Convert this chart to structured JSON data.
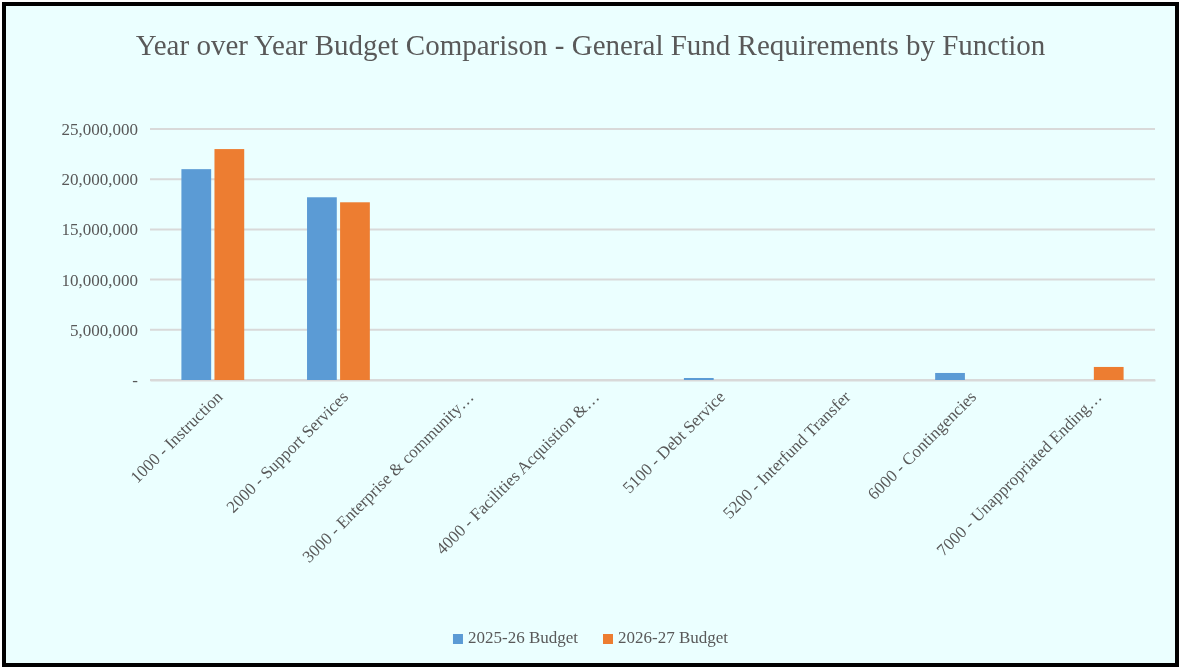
{
  "chart_data": {
    "type": "bar",
    "title": "Year over Year Budget Comparison  - General Fund Requirements  by Function",
    "categories": [
      "1000 - Instruction",
      "2000 - Support Services",
      "3000 - Enterprise & community…",
      "4000 - Facilities Acquistion &…",
      "5100 - Debt Service",
      "5200 - Interfund Transfer",
      "6000 - Contingencies",
      "7000 - Unappropriated Ending…"
    ],
    "series": [
      {
        "name": "2025-26 Budget",
        "color": "#5b9bd5",
        "values": [
          21000000,
          18200000,
          0,
          0,
          200000,
          0,
          700000,
          0
        ]
      },
      {
        "name": "2026-27 Budget",
        "color": "#ed7d31",
        "values": [
          23000000,
          17700000,
          0,
          0,
          0,
          0,
          0,
          1300000
        ]
      }
    ],
    "ylim": [
      0,
      25000000
    ],
    "yticks": [
      {
        "value": 0,
        "label": "-"
      },
      {
        "value": 5000000,
        "label": "5,000,000"
      },
      {
        "value": 10000000,
        "label": "10,000,000"
      },
      {
        "value": 15000000,
        "label": "15,000,000"
      },
      {
        "value": 20000000,
        "label": "20,000,000"
      },
      {
        "value": 25000000,
        "label": "25,000,000"
      }
    ],
    "grid": "y",
    "legend": "bottom"
  }
}
